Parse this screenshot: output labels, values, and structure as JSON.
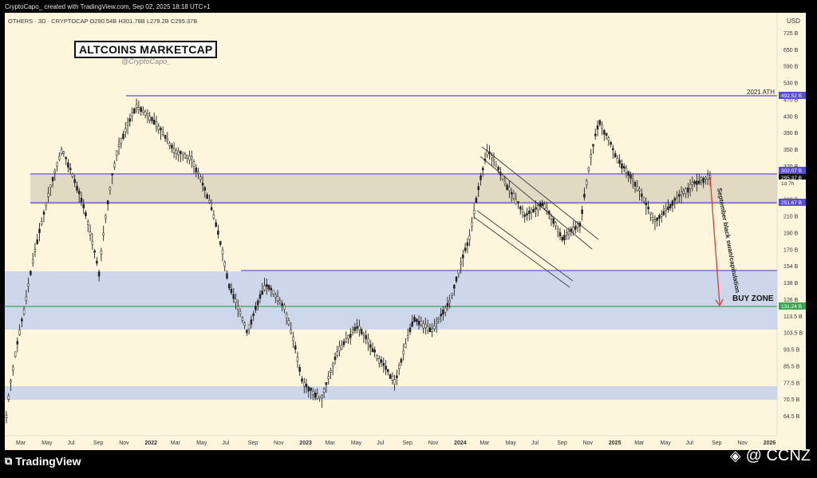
{
  "header": {
    "text": "CryptoCapo_ created with TradingView.com, Sep 02, 2025 18:18 UTC+1"
  },
  "symbol_line": "OTHERS · 3D · CRYPTOCAP  O290.54B  H301.78B  L279.2B  C295.37B",
  "title": "ALTCOINS MARKETCAP",
  "handle": "@CryptoCapo_",
  "footer": {
    "logo_text": "TradingView",
    "credit": "@ CCNZ"
  },
  "chart_data": {
    "type": "line",
    "currency_label": "USD",
    "y_ticks": [
      "725 B",
      "650 B",
      "590 B",
      "530 B",
      "470 B",
      "430 B",
      "390 B",
      "350 B",
      "320 B",
      "260 B",
      "230 B",
      "210 B",
      "190 B",
      "170 B",
      "154 B",
      "138 B",
      "126 B",
      "113.5 B",
      "103.5 B",
      "93.5 B",
      "85.5 B",
      "77.5 B",
      "70.5 B",
      "64.5 B"
    ],
    "x_ticks": [
      "Mar",
      "May",
      "Jul",
      "Sep",
      "Nov",
      "2022",
      "Mar",
      "May",
      "Jul",
      "Sep",
      "Nov",
      "2023",
      "Mar",
      "May",
      "Jul",
      "Sep",
      "Nov",
      "2024",
      "Mar",
      "May",
      "Jul",
      "Sep",
      "Nov",
      "2025",
      "Mar",
      "May",
      "Jul",
      "Sep",
      "Nov",
      "2026"
    ],
    "price_labels": [
      {
        "text": "492.52 B",
        "color": "#5b4ec9"
      },
      {
        "text": "302.07 B",
        "color": "#5b4ec9"
      },
      {
        "text": "295.37 B",
        "color": "#111111"
      },
      {
        "text": "1d 7h",
        "color": "#111111"
      },
      {
        "text": "251.67 B",
        "color": "#5b4ec9"
      },
      {
        "text": "131.24 B",
        "color": "#3aa655"
      }
    ],
    "annotations": {
      "ath": "2021 ATH",
      "swan": "September black swan/capitulation",
      "buy_zone": "BUY ZONE"
    },
    "series": [
      {
        "values": [
          65,
          130,
          230,
          350,
          260,
          160,
          350,
          460,
          420,
          350,
          330,
          250,
          150,
          110,
          150,
          130,
          80,
          72,
          100,
          115,
          95,
          80,
          120,
          112,
          135,
          200,
          350,
          280,
          230,
          250,
          200,
          220,
          420,
          330,
          280,
          220,
          250,
          280,
          296
        ]
      }
    ],
    "colors": {
      "resistance": "#5b4ec9",
      "support": "#3aa655",
      "zone_tan": "#e2d9c2",
      "zone_blue": "#c9d3ea",
      "arrow": "#e03a3a"
    }
  }
}
